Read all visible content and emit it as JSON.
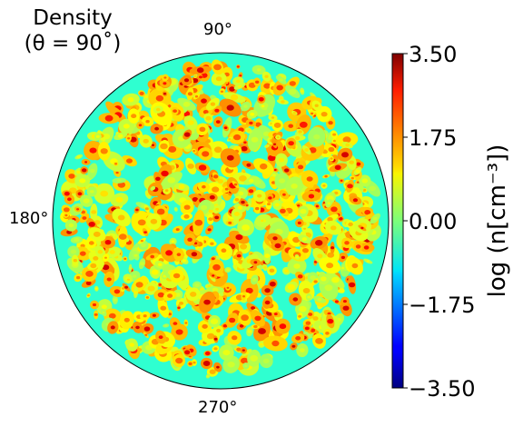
{
  "chart_data": {
    "type": "heatmap",
    "title": "Density",
    "subtitle": "(θ = 90˚)",
    "projection": "polar disk",
    "angular_tick_labels": [
      "90°",
      "180°",
      "270°"
    ],
    "colorbar": {
      "label": "log (n[cm⁻³])",
      "range": [
        -3.5,
        3.5
      ],
      "ticks": [
        3.5,
        1.75,
        0.0,
        -1.75,
        -3.5
      ],
      "tick_labels": [
        "3.50",
        "1.75",
        "0.00",
        "−1.75",
        "−3.50"
      ],
      "colormap": "jet"
    },
    "field": {
      "background_value": -0.55,
      "clump_value_range": [
        0.4,
        3.0
      ],
      "description_values": "turbulent clumpy density; most of disk near -0.5 with many clumps rising to ~2.5-3"
    }
  },
  "colors": {
    "jet_low": "#00007f",
    "jet_mid": "#7fff7f",
    "jet_high": "#7f0000",
    "background": "#ffffff",
    "outline": "#000000"
  }
}
